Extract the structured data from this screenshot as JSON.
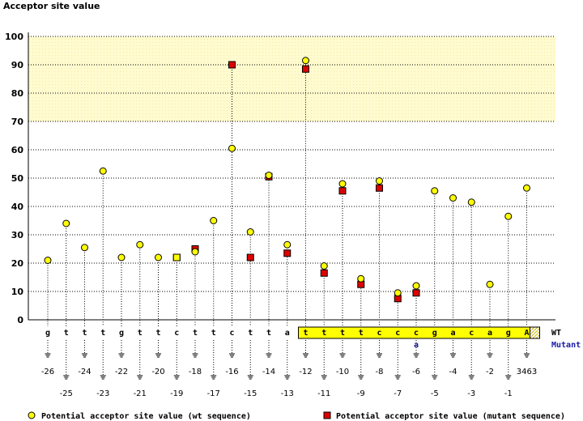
{
  "chart_data": {
    "type": "scatter",
    "ylabel": "Acceptor site value",
    "ylim": [
      0,
      100
    ],
    "yticks": [
      0,
      10,
      20,
      30,
      40,
      50,
      60,
      70,
      80,
      90,
      100
    ],
    "highlight_band": [
      70,
      100
    ],
    "colors": {
      "wt_marker": "#ffff00",
      "mut_marker": "#dd0000",
      "band": "#fffbd0",
      "exon_box": "#ffff00"
    },
    "positions": [
      {
        "nt": "g",
        "label": "-26",
        "wt": 21
      },
      {
        "nt": "t",
        "label": "-25",
        "wt": 34
      },
      {
        "nt": "t",
        "label": "-24",
        "wt": 25.5
      },
      {
        "nt": "t",
        "label": "-23",
        "wt": 52.5
      },
      {
        "nt": "g",
        "label": "-22",
        "wt": 22
      },
      {
        "nt": "t",
        "label": "-21",
        "wt": 26.5
      },
      {
        "nt": "t",
        "label": "-20",
        "wt": 22
      },
      {
        "nt": "c",
        "label": "-19",
        "wt": 22,
        "mut": 22
      },
      {
        "nt": "t",
        "label": "-18",
        "wt": 24,
        "mut": 25
      },
      {
        "nt": "t",
        "label": "-17",
        "wt": 35
      },
      {
        "nt": "c",
        "label": "-16",
        "wt": 60.5,
        "mut": 90
      },
      {
        "nt": "t",
        "label": "-15",
        "wt": 31,
        "mut": 22
      },
      {
        "nt": "t",
        "label": "-14",
        "wt": 51,
        "mut": 50.5
      },
      {
        "nt": "a",
        "label": "-13",
        "wt": 26.5,
        "mut": 23.5
      },
      {
        "nt": "t",
        "label": "-12",
        "wt": 91.5,
        "mut": 88.5
      },
      {
        "nt": "t",
        "label": "-11",
        "wt": 19,
        "mut": 16.5
      },
      {
        "nt": "t",
        "label": "-10",
        "wt": 48,
        "mut": 45.5
      },
      {
        "nt": "t",
        "label": "-9",
        "wt": 14.5,
        "mut": 12.5
      },
      {
        "nt": "c",
        "label": "-8",
        "wt": 49,
        "mut": 46.5
      },
      {
        "nt": "c",
        "label": "-7",
        "wt": 9.5,
        "mut": 7.5
      },
      {
        "nt": "c",
        "label": "-6",
        "wt": 12,
        "mut": 9.5,
        "mut_nt": "a"
      },
      {
        "nt": "g",
        "label": "-5",
        "wt": 45.5
      },
      {
        "nt": "a",
        "label": "-4",
        "wt": 43
      },
      {
        "nt": "c",
        "label": "-3",
        "wt": 41.5
      },
      {
        "nt": "a",
        "label": "-2",
        "wt": 12.5
      },
      {
        "nt": "g",
        "label": "-1",
        "wt": 36.5
      },
      {
        "nt": "A",
        "label": "3463",
        "wt": 46.5
      }
    ],
    "row_labels": {
      "wt": "WT",
      "mutant": "Mutant"
    },
    "legend": {
      "wt": "Potential acceptor site value (wt sequence)",
      "mut": "Potential acceptor site value (mutant sequence)"
    }
  }
}
